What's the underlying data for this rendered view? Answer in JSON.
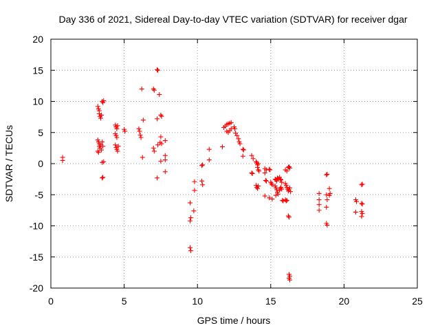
{
  "chart_data": {
    "type": "scatter",
    "title": "Day 336 of 2021, Sidereal Day-to-day VTEC variation (SDTVAR) for receiver dgar",
    "xlabel": "GPS time / hours",
    "ylabel": "SDTVAR / TECUs",
    "xlim": [
      0,
      25
    ],
    "ylim": [
      -20,
      20
    ],
    "x_ticks": [
      "0",
      "5",
      "10",
      "15",
      "20",
      "25"
    ],
    "y_ticks": [
      "20",
      "15",
      "10",
      "5",
      "0",
      "-5",
      "-10",
      "-15",
      "-20"
    ],
    "x_tick_values": [
      0,
      5,
      10,
      15,
      20,
      25
    ],
    "y_tick_values": [
      20,
      15,
      10,
      5,
      0,
      -5,
      -10,
      -15,
      -20
    ],
    "grid": true,
    "marker": "+",
    "color": "#ff0000",
    "series": [
      {
        "name": "dgar",
        "points": [
          [
            0.8,
            1.0
          ],
          [
            0.8,
            0.5
          ],
          [
            3.2,
            9.2
          ],
          [
            3.25,
            8.8
          ],
          [
            3.3,
            8.5
          ],
          [
            3.3,
            8.0
          ],
          [
            3.35,
            7.6
          ],
          [
            3.4,
            7.3
          ],
          [
            3.45,
            7.8
          ],
          [
            3.5,
            10.0
          ],
          [
            3.55,
            9.8
          ],
          [
            3.6,
            10.1
          ],
          [
            3.2,
            3.8
          ],
          [
            3.25,
            3.5
          ],
          [
            3.3,
            3.2
          ],
          [
            3.3,
            2.8
          ],
          [
            3.35,
            2.5
          ],
          [
            3.4,
            3.0
          ],
          [
            3.45,
            2.2
          ],
          [
            3.5,
            3.5
          ],
          [
            3.55,
            2.8
          ],
          [
            3.2,
            2.0
          ],
          [
            3.25,
            1.8
          ],
          [
            3.5,
            0.2
          ],
          [
            3.6,
            0.3
          ],
          [
            3.5,
            -2.3
          ],
          [
            3.55,
            -2.2
          ],
          [
            4.4,
            6.2
          ],
          [
            4.45,
            5.9
          ],
          [
            4.5,
            5.6
          ],
          [
            4.55,
            6.1
          ],
          [
            4.4,
            4.8
          ],
          [
            4.45,
            4.5
          ],
          [
            4.5,
            4.2
          ],
          [
            4.4,
            3.0
          ],
          [
            4.45,
            2.6
          ],
          [
            4.5,
            2.3
          ],
          [
            4.55,
            2.0
          ],
          [
            4.6,
            2.8
          ],
          [
            5.0,
            5.5
          ],
          [
            5.05,
            5.2
          ],
          [
            6.0,
            5.6
          ],
          [
            6.05,
            5.2
          ],
          [
            6.1,
            4.6
          ],
          [
            6.15,
            4.2
          ],
          [
            6.2,
            12.0
          ],
          [
            6.3,
            7.0
          ],
          [
            6.25,
            1.0
          ],
          [
            7.0,
            12.0
          ],
          [
            7.05,
            11.8
          ],
          [
            7.0,
            2.5
          ],
          [
            7.05,
            2.0
          ],
          [
            7.25,
            15.1
          ],
          [
            7.3,
            15.0
          ],
          [
            7.25,
            7.2
          ],
          [
            7.3,
            3.0
          ],
          [
            7.4,
            11.1
          ],
          [
            7.5,
            7.8
          ],
          [
            7.55,
            7.6
          ],
          [
            7.5,
            4.3
          ],
          [
            7.45,
            3.4
          ],
          [
            7.55,
            3.2
          ],
          [
            7.5,
            0.4
          ],
          [
            7.8,
            3.7
          ],
          [
            7.8,
            1.3
          ],
          [
            7.8,
            0.6
          ],
          [
            7.8,
            -1.3
          ],
          [
            7.25,
            -2.3
          ],
          [
            9.5,
            -6.3
          ],
          [
            9.55,
            -8.7
          ],
          [
            9.5,
            -9.2
          ],
          [
            9.5,
            -13.5
          ],
          [
            9.55,
            -14.0
          ],
          [
            9.8,
            -2.9
          ],
          [
            9.8,
            -4.3
          ],
          [
            9.75,
            -7.6
          ],
          [
            10.3,
            -0.3
          ],
          [
            10.35,
            -0.2
          ],
          [
            10.3,
            -2.8
          ],
          [
            10.35,
            -3.4
          ],
          [
            10.8,
            2.3
          ],
          [
            10.8,
            0.6
          ],
          [
            11.7,
            2.7
          ],
          [
            11.8,
            5.8
          ],
          [
            11.9,
            6.0
          ],
          [
            12.0,
            6.3
          ],
          [
            12.1,
            6.4
          ],
          [
            12.2,
            6.5
          ],
          [
            12.3,
            6.6
          ],
          [
            12.0,
            5.2
          ],
          [
            12.1,
            5.0
          ],
          [
            12.2,
            5.3
          ],
          [
            12.3,
            5.6
          ],
          [
            12.5,
            5.9
          ],
          [
            12.55,
            5.6
          ],
          [
            12.6,
            4.9
          ],
          [
            12.7,
            4.5
          ],
          [
            12.8,
            4.0
          ],
          [
            12.85,
            3.5
          ],
          [
            12.9,
            3.2
          ],
          [
            13.1,
            2.3
          ],
          [
            13.15,
            2.2
          ],
          [
            13.1,
            1.2
          ],
          [
            13.7,
            1.3
          ],
          [
            13.8,
            0.8
          ],
          [
            14.0,
            0.3
          ],
          [
            14.05,
            0.1
          ],
          [
            14.1,
            -0.2
          ],
          [
            14.1,
            -0.6
          ],
          [
            14.15,
            -1.0
          ],
          [
            14.2,
            -1.2
          ],
          [
            14.15,
            0.0
          ],
          [
            13.7,
            -1.5
          ],
          [
            13.75,
            -1.6
          ],
          [
            14.0,
            -3.5
          ],
          [
            14.05,
            -3.8
          ],
          [
            14.1,
            -4.0
          ],
          [
            14.15,
            -3.6
          ],
          [
            14.6,
            -0.8
          ],
          [
            14.7,
            -1.0
          ],
          [
            14.6,
            -1.5
          ],
          [
            14.65,
            -2.7
          ],
          [
            14.7,
            -2.8
          ],
          [
            14.6,
            -5.2
          ],
          [
            14.9,
            -0.9
          ],
          [
            14.95,
            -1.0
          ],
          [
            15.0,
            -3.0
          ],
          [
            15.05,
            -3.2
          ],
          [
            15.1,
            -3.4
          ],
          [
            14.9,
            -5.5
          ],
          [
            15.1,
            -5.7
          ],
          [
            15.3,
            -2.5
          ],
          [
            15.35,
            -2.6
          ],
          [
            15.4,
            -2.8
          ],
          [
            15.45,
            -2.3
          ],
          [
            15.5,
            -2.4
          ],
          [
            15.6,
            -2.2
          ],
          [
            15.65,
            -2.5
          ],
          [
            15.7,
            -2.6
          ],
          [
            15.75,
            -3.0
          ],
          [
            15.3,
            -3.6
          ],
          [
            15.35,
            -3.9
          ],
          [
            15.4,
            -4.2
          ],
          [
            15.45,
            -4.6
          ],
          [
            15.5,
            -4.9
          ],
          [
            15.35,
            -5.1
          ],
          [
            15.6,
            -4.3
          ],
          [
            15.65,
            -4.0
          ],
          [
            15.7,
            -3.8
          ],
          [
            15.75,
            -4.1
          ],
          [
            15.8,
            -5.9
          ],
          [
            15.85,
            -6.0
          ],
          [
            16.0,
            -1.0
          ],
          [
            16.1,
            -1.2
          ],
          [
            16.0,
            -3.2
          ],
          [
            16.05,
            -3.5
          ],
          [
            16.1,
            -3.8
          ],
          [
            16.15,
            -4.1
          ],
          [
            16.2,
            -4.4
          ],
          [
            16.25,
            -4.2
          ],
          [
            16.3,
            -3.9
          ],
          [
            16.35,
            -4.5
          ],
          [
            16.0,
            -5.8
          ],
          [
            16.05,
            -6.0
          ],
          [
            16.1,
            -5.9
          ],
          [
            16.2,
            -0.6
          ],
          [
            16.25,
            -0.5
          ],
          [
            16.3,
            -0.7
          ],
          [
            16.2,
            -8.4
          ],
          [
            16.25,
            -8.6
          ],
          [
            16.25,
            -17.8
          ],
          [
            16.3,
            -18.1
          ],
          [
            16.25,
            -18.4
          ],
          [
            16.3,
            -18.7
          ],
          [
            18.3,
            -4.8
          ],
          [
            18.3,
            -5.8
          ],
          [
            18.3,
            -6.6
          ],
          [
            18.3,
            -7.5
          ],
          [
            18.8,
            -1.8
          ],
          [
            18.85,
            -1.7
          ],
          [
            18.8,
            -5.0
          ],
          [
            18.85,
            -5.8
          ],
          [
            18.8,
            -7.0
          ],
          [
            18.8,
            -9.6
          ],
          [
            18.85,
            -9.9
          ],
          [
            19.0,
            -4.0
          ],
          [
            19.05,
            -4.8
          ],
          [
            19.0,
            -5.1
          ],
          [
            20.8,
            -5.8
          ],
          [
            20.85,
            -6.1
          ],
          [
            20.8,
            -7.8
          ],
          [
            21.2,
            -3.4
          ],
          [
            21.25,
            -3.3
          ],
          [
            21.2,
            -6.4
          ],
          [
            21.25,
            -6.5
          ],
          [
            21.2,
            -7.7
          ],
          [
            21.25,
            -8.0
          ],
          [
            21.2,
            -8.5
          ]
        ]
      }
    ]
  }
}
